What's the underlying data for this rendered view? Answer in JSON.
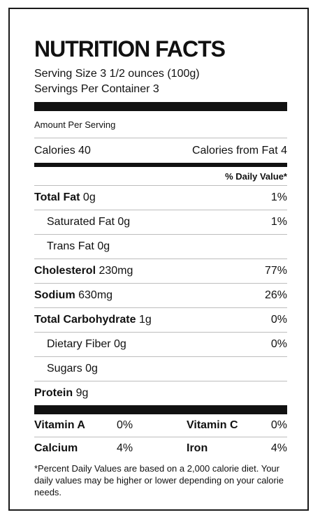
{
  "label": {
    "title": "NUTRITION FACTS",
    "serving_size": "Serving Size 3 1/2 ounces (100g)",
    "servings_per_container": "Servings Per Container 3",
    "amount_per_serving": "Amount Per Serving",
    "calories": "Calories 40",
    "calories_from_fat": "Calories from Fat 4",
    "daily_value_header": "% Daily Value*",
    "nutrients": [
      {
        "name": "Total Fat",
        "amount": " 0g",
        "dv": "1%"
      },
      {
        "name": "Saturated Fat 0g",
        "dv": "1%"
      },
      {
        "name": "Trans Fat 0g",
        "dv": ""
      },
      {
        "name": "Cholesterol",
        "amount": " 230mg",
        "dv": "77%"
      },
      {
        "name": "Sodium",
        "amount": " 630mg",
        "dv": "26%"
      },
      {
        "name": "Total Carbohydrate",
        "amount": " 1g",
        "dv": "0%"
      },
      {
        "name": "Dietary Fiber 0g",
        "dv": "0%"
      },
      {
        "name": "Sugars 0g",
        "dv": ""
      },
      {
        "name": "Protein",
        "amount": " 9g",
        "dv": ""
      }
    ],
    "vitamins": [
      {
        "name1": "Vitamin A",
        "val1": "0%",
        "name2": "Vitamin C",
        "val2": "0%"
      },
      {
        "name1": "Calcium",
        "val1": "4%",
        "name2": "Iron",
        "val2": "4%"
      }
    ],
    "footnote": "*Percent Daily Values are based on a 2,000 calorie diet. Your daily values may be higher or lower depending on your calorie needs."
  }
}
